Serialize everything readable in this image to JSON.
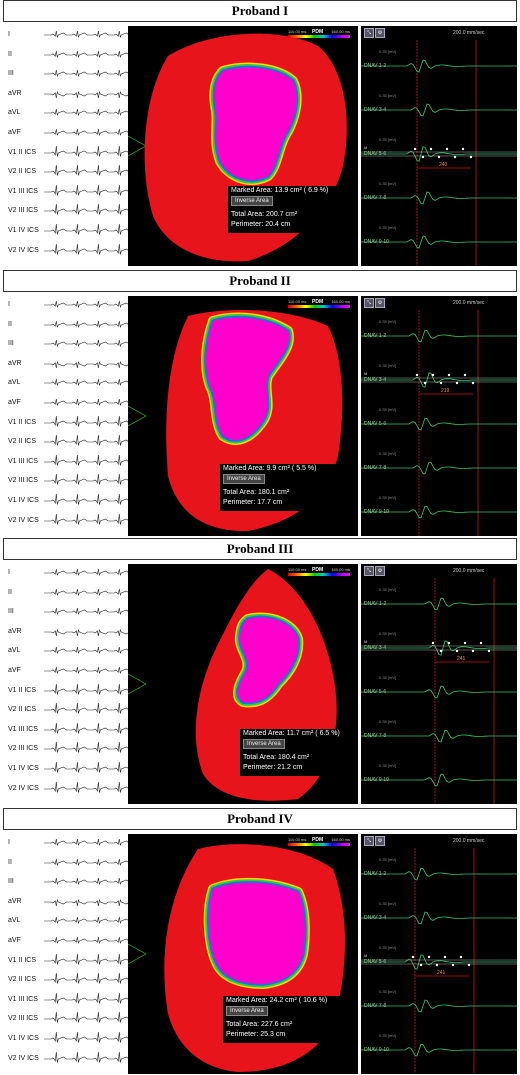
{
  "leads": [
    "I",
    "II",
    "III",
    "aVR",
    "aVL",
    "aVF",
    "V1 II ICS",
    "V2 II ICS",
    "V1 III ICS",
    "V2 III ICS",
    "V1 IV ICS",
    "V2 IV ICS"
  ],
  "legend": {
    "min": "110.00 ms",
    "label": "PDM",
    "max": "160.00 ms"
  },
  "speed": "200.0 mm/sec",
  "mv_unit": "0.35  [mV]",
  "marked_area_label": "Marked Area:",
  "inverse_area_label": "Inverse Area",
  "total_area_label": "Total Area:",
  "perimeter_label": "Perimeter:",
  "cm2": "cm",
  "cm": "cm",
  "m_marker": "M",
  "probands": [
    {
      "title": "Proband I",
      "marked_area": "13.9",
      "marked_pct": "6.9",
      "total_area": "200.7",
      "perimeter": "20.4",
      "channels": [
        "DNAV 1-2",
        "DNAV 3-4",
        "DNAV 5-6",
        "DNAV 7-8",
        "DNAV 9-10"
      ],
      "active_channel": 2,
      "interval": "240"
    },
    {
      "title": "Proband II",
      "marked_area": "9.9",
      "marked_pct": "5.5",
      "total_area": "180.1",
      "perimeter": "17.7",
      "channels": [
        "DNAV 1-2",
        "DNAV 3-4",
        "DNAV 5-6",
        "DNAV 7-8",
        "DNAV 9-10"
      ],
      "active_channel": 1,
      "interval": "219"
    },
    {
      "title": "Proband III",
      "marked_area": "11.7",
      "marked_pct": "6.5",
      "total_area": "180.4",
      "perimeter": "21.2",
      "channels": [
        "DNAV 1-2",
        "DNAV 3-4",
        "DNAV 5-6",
        "DNAV 7-8",
        "DNAV 9-10"
      ],
      "active_channel": 1,
      "interval": "241"
    },
    {
      "title": "Proband IV",
      "marked_area": "24.2",
      "marked_pct": "10.6",
      "total_area": "227.6",
      "perimeter": "25.3",
      "channels": [
        "DNAV 1-2",
        "DNAV 3-4",
        "DNAV 5-6",
        "DNAV 7-8",
        "DNAV 9-10"
      ],
      "active_channel": 2,
      "interval": "241"
    }
  ],
  "colors": {
    "scar": "#ff00cc",
    "healthy": "#e8141c",
    "border_green": "#2ecc40",
    "border_blue": "#1f6fe0",
    "egm_trace": "#2ecc71",
    "marker_red": "#d01020"
  }
}
